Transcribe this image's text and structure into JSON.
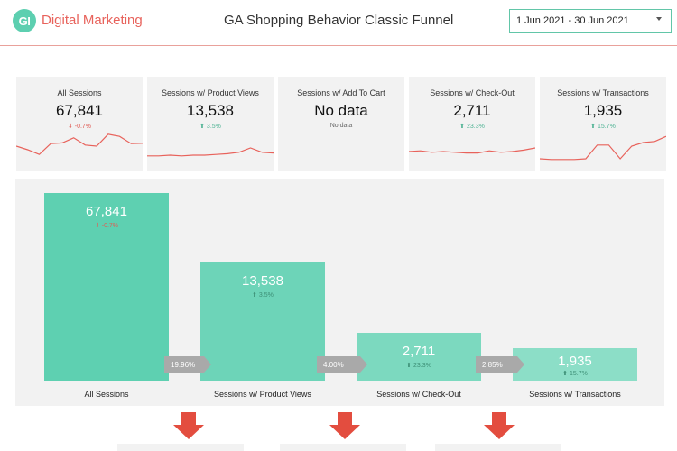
{
  "header": {
    "logo_text": "GI",
    "brand": "Digital Marketing",
    "title": "GA Shopping Behavior Classic Funnel",
    "date_range": "1 Jun 2021 - 30 Jun 2021",
    "colors": {
      "brand": "#e8625b",
      "logo_bg": "#5dcfb0",
      "picker_border": "#62c6a8"
    }
  },
  "kpis": [
    {
      "label": "All Sessions",
      "value": "67,841",
      "delta": "-0.7%",
      "direction": "down",
      "spark": [
        0.45,
        0.55,
        0.68,
        0.38,
        0.36,
        0.22,
        0.42,
        0.45,
        0.12,
        0.18,
        0.38,
        0.37
      ]
    },
    {
      "label": "Sessions w/ Product Views",
      "value": "13,538",
      "delta": "3.5%",
      "direction": "up",
      "spark": [
        0.72,
        0.72,
        0.7,
        0.72,
        0.7,
        0.7,
        0.68,
        0.66,
        0.62,
        0.5,
        0.62,
        0.64
      ]
    },
    {
      "label": "Sessions w/ Add To Cart",
      "value": "No data",
      "delta": "No data",
      "direction": "none",
      "spark": []
    },
    {
      "label": "Sessions w/ Check-Out",
      "value": "2,711",
      "delta": "23.3%",
      "direction": "up",
      "spark": [
        0.6,
        0.58,
        0.62,
        0.6,
        0.62,
        0.64,
        0.64,
        0.58,
        0.62,
        0.6,
        0.56,
        0.5
      ]
    },
    {
      "label": "Sessions w/ Transactions",
      "value": "1,935",
      "delta": "15.7%",
      "direction": "up",
      "spark": [
        0.8,
        0.82,
        0.82,
        0.82,
        0.8,
        0.42,
        0.42,
        0.8,
        0.45,
        0.35,
        0.32,
        0.18
      ]
    }
  ],
  "funnel": {
    "stages": [
      {
        "label": "All Sessions",
        "value": "67,841",
        "amount": 67841,
        "delta": "-0.7%",
        "direction": "down",
        "color": "#5ed0b1"
      },
      {
        "label": "Sessions w/ Product Views",
        "value": "13,538",
        "amount": 13538,
        "delta": "3.5%",
        "direction": "up",
        "color": "#6dd4b8"
      },
      {
        "label": "Sessions w/ Check-Out",
        "value": "2,711",
        "amount": 2711,
        "delta": "23.3%",
        "direction": "up",
        "color": "#7cd9bf"
      },
      {
        "label": "Sessions w/ Transactions",
        "value": "1,935",
        "amount": 1935,
        "delta": "15.7%",
        "direction": "up",
        "color": "#8cdec7"
      }
    ],
    "rates": [
      "19.96%",
      "4.00%",
      "2.85%"
    ],
    "colors": {
      "rate_bg": "#a9a9a9",
      "down_arrow": "#e34d3f",
      "spark_line": "#e8625b"
    }
  }
}
